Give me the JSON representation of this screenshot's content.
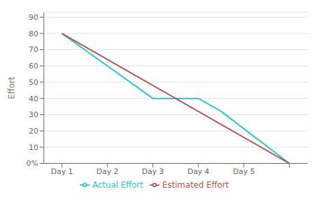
{
  "chart_data": {
    "type": "line",
    "ylabel": "Effort",
    "series": [
      {
        "name": "Actual Effort",
        "color": "#2ec4c4",
        "x": [
          1,
          1,
          2,
          3,
          4,
          4.5,
          6
        ],
        "values": [
          80,
          80,
          60,
          40,
          40,
          32,
          0
        ]
      },
      {
        "name": "Estimated Effort",
        "color": "#b05555",
        "x": [
          1,
          6
        ],
        "values": [
          80,
          0
        ]
      }
    ],
    "xlim": [
      0.6,
      6.4
    ],
    "xticks": [
      {
        "value": 1,
        "label": "Day 1"
      },
      {
        "value": 2,
        "label": "Day 2"
      },
      {
        "value": 3,
        "label": "Day 3"
      },
      {
        "value": 4,
        "label": "Day 4"
      },
      {
        "value": 5,
        "label": "Day 5"
      },
      {
        "value": 6,
        "label": null
      }
    ],
    "ylim": [
      0,
      93
    ],
    "yticks": [
      {
        "value": 0,
        "label": "0%"
      },
      10,
      20,
      30,
      40,
      50,
      60,
      70,
      80,
      90
    ],
    "grid": true,
    "legend": "bottom"
  }
}
